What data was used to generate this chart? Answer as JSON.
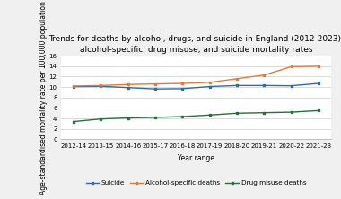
{
  "title": "Trends for deaths by alcohol, drugs, and suicide in England (2012-2023):\nalcohol-specific, drug misuse, and suicide mortality rates",
  "xlabel": "Year range",
  "ylabel": "Age-standardised mortality rate per 100,000 population",
  "x_labels": [
    "2012-14",
    "2013-15",
    "2014-16",
    "2015-17",
    "2016-18",
    "2017-19",
    "2018-20",
    "2019-21",
    "2020-22",
    "2021-23"
  ],
  "suicide": [
    10.1,
    10.15,
    9.9,
    9.65,
    9.7,
    10.1,
    10.3,
    10.3,
    10.25,
    10.7
  ],
  "alcohol": [
    10.2,
    10.3,
    10.5,
    10.6,
    10.7,
    10.9,
    11.6,
    12.3,
    13.9,
    14.0
  ],
  "drug_misuse": [
    3.4,
    3.9,
    4.1,
    4.2,
    4.35,
    4.65,
    5.0,
    5.1,
    5.2,
    5.5
  ],
  "suicide_color": "#2e6da4",
  "alcohol_color": "#e07b39",
  "drug_color": "#2a6e3f",
  "ylim": [
    0,
    16
  ],
  "yticks": [
    0,
    2,
    4,
    6,
    8,
    10,
    12,
    14,
    16
  ],
  "legend_labels": [
    "Suicide",
    "Alcohol-specific deaths",
    "Drug misuse deaths"
  ],
  "bg_color": "#f0f0f0",
  "plot_bg_color": "#ffffff",
  "title_fontsize": 6.5,
  "label_fontsize": 5.5,
  "tick_fontsize": 5.0,
  "legend_fontsize": 5.2
}
